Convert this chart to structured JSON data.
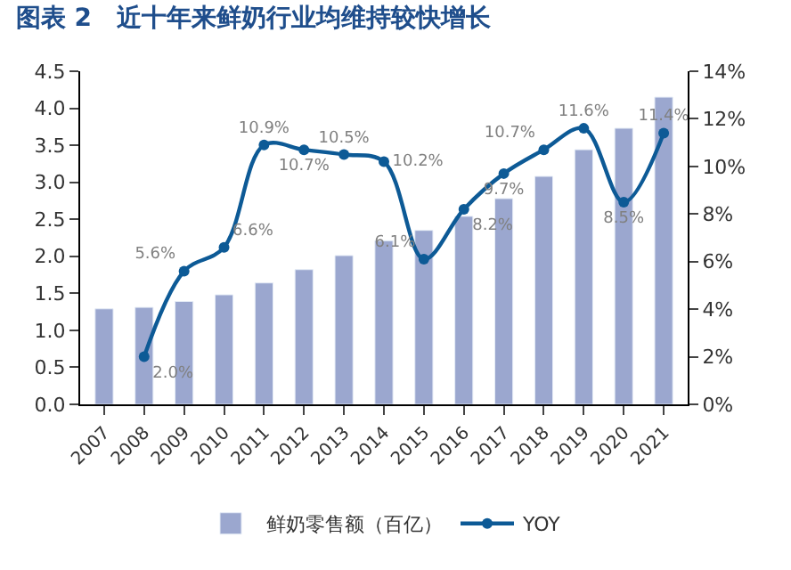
{
  "chart_data": {
    "type": "bar",
    "title": "图表 2　近十年来鲜奶行业均维持较快增长",
    "categories": [
      "2007",
      "2008",
      "2009",
      "2010",
      "2011",
      "2012",
      "2013",
      "2014",
      "2015",
      "2016",
      "2017",
      "2018",
      "2019",
      "2020",
      "2021"
    ],
    "series": [
      {
        "name": "鲜奶零售额（百亿）",
        "color": "#9ba7cf",
        "values": [
          1.29,
          1.31,
          1.39,
          1.48,
          1.64,
          1.82,
          2.01,
          2.21,
          2.35,
          2.54,
          2.78,
          3.08,
          3.44,
          3.73,
          4.15
        ]
      },
      {
        "name": "YOY",
        "type": "line",
        "axis": "y2",
        "color": "#0d5a96",
        "marker": "circle",
        "line_style": "solid",
        "values": [
          null,
          2.0,
          5.6,
          6.6,
          10.9,
          10.7,
          10.5,
          10.2,
          6.1,
          8.2,
          9.7,
          10.7,
          11.6,
          8.5,
          11.4
        ],
        "value_labels": [
          null,
          "2.0%",
          "5.6%",
          "6.6%",
          "10.9%",
          "10.7%",
          "10.5%",
          "10.2%",
          "6.1%",
          "8.2%",
          "9.7%",
          "10.7%",
          "11.6%",
          "8.5%",
          "11.4%"
        ]
      }
    ],
    "ylim": [
      0,
      4.5
    ],
    "yticks": [
      {
        "value": 0,
        "label": "0.0"
      },
      {
        "value": 0.5,
        "label": "0.5"
      },
      {
        "value": 1,
        "label": "1.0"
      },
      {
        "value": 1.5,
        "label": "1.5"
      },
      {
        "value": 2,
        "label": "2.0"
      },
      {
        "value": 2.5,
        "label": "2.5"
      },
      {
        "value": 3,
        "label": "3.0"
      },
      {
        "value": 3.5,
        "label": "3.5"
      },
      {
        "value": 4,
        "label": "4.0"
      },
      {
        "value": 4.5,
        "label": "4.5"
      }
    ],
    "y2lim": [
      0,
      14
    ],
    "y2ticks": [
      {
        "value": 0,
        "label": "0%"
      },
      {
        "value": 2,
        "label": "2%"
      },
      {
        "value": 4,
        "label": "4%"
      },
      {
        "value": 6,
        "label": "6%"
      },
      {
        "value": 8,
        "label": "8%"
      },
      {
        "value": 10,
        "label": "10%"
      },
      {
        "value": 12,
        "label": "12%"
      },
      {
        "value": 14,
        "label": "14%"
      }
    ],
    "legend": "bottom"
  }
}
